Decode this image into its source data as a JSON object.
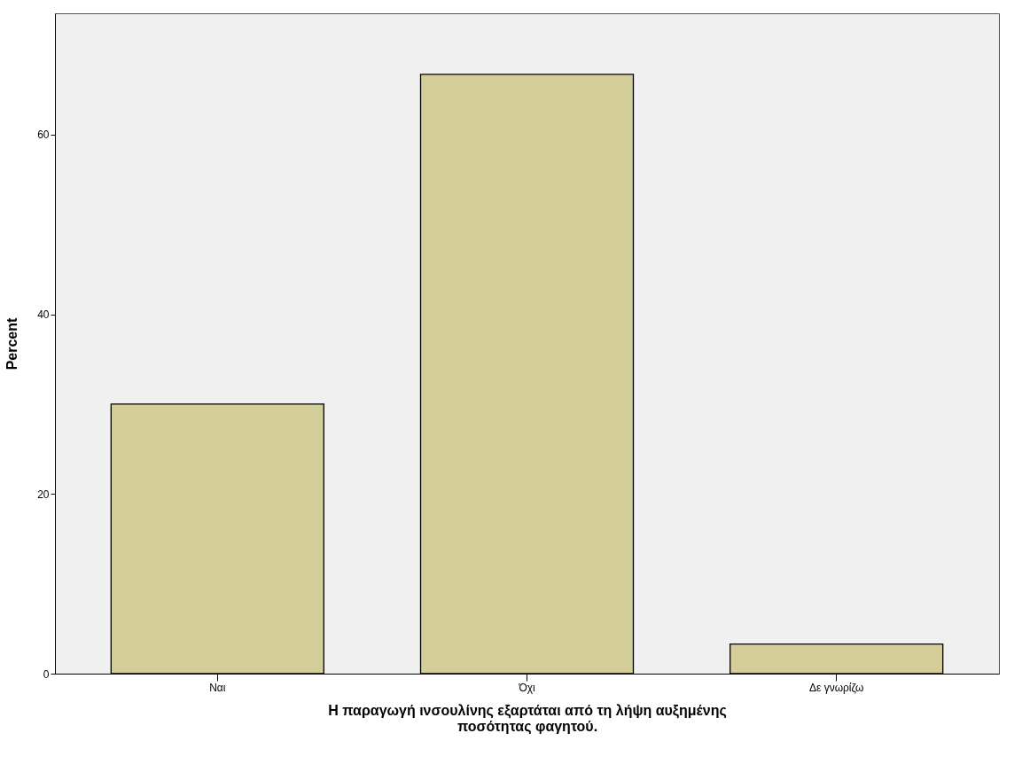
{
  "chart_data": {
    "type": "bar",
    "categories": [
      "Ναι",
      "Όχι",
      "Δε γνωρίζω"
    ],
    "values": [
      30.0,
      66.7,
      3.3
    ],
    "color": "#d3ce97",
    "xlabel": "Η παραγωγή ινσουλίνης εξαρτάται από τη λήψη αυξημένης ποσότητας φαγητού.",
    "ylabel": "Percent",
    "ylim": [
      0,
      73.5
    ],
    "yticks": [
      0,
      20,
      40,
      60
    ],
    "grid": false
  }
}
